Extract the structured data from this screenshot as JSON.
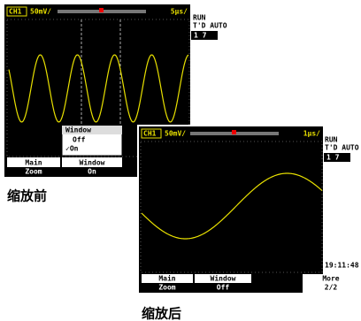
{
  "before": {
    "channel": "CH1",
    "volts_per_div": "50mV/",
    "time_per_div": "5μs/",
    "status": [
      "RUN",
      "T'D AUTO"
    ],
    "indicator": "1 7",
    "popup": {
      "title": "Window",
      "options": [
        "Off",
        "✓On"
      ]
    },
    "softkeys": [
      {
        "top": "Main",
        "bottom": "Zoom"
      },
      {
        "top": "Window",
        "bottom": "On"
      }
    ],
    "caption": "缩放前"
  },
  "after": {
    "channel": "CH1",
    "volts_per_div": "50mV/",
    "time_per_div": "1μs/",
    "status": [
      "RUN",
      "T'D AUTO"
    ],
    "indicator": "1 7",
    "clock": "19:11:48",
    "softkeys": [
      {
        "top": "Main",
        "bottom": "Zoom"
      },
      {
        "top": "Window",
        "bottom": "Off"
      },
      {
        "top": "More",
        "bottom": "2/2"
      }
    ],
    "caption": "缩放后"
  }
}
